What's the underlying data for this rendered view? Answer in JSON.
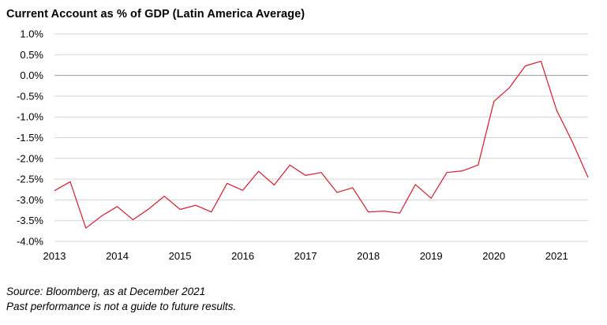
{
  "chart_data": {
    "type": "line",
    "title": "Current Account as % of GDP (Latin America Average)",
    "xlabel": "",
    "ylabel": "",
    "x_ticks": [
      "2013",
      "2014",
      "2015",
      "2016",
      "2017",
      "2018",
      "2019",
      "2020",
      "2021"
    ],
    "x_range": [
      2013.0,
      2021.5
    ],
    "y_ticks": [
      "1.0%",
      "0.5%",
      "0.0%",
      "-0.5%",
      "-1.0%",
      "-1.5%",
      "-2.0%",
      "-2.5%",
      "-3.0%",
      "-3.5%",
      "-4.0%"
    ],
    "ylim": [
      -4.0,
      1.0
    ],
    "grid": "horizontal",
    "legend": "none",
    "series": [
      {
        "color": "#e0182d",
        "x": [
          2013.0,
          2013.25,
          2013.5,
          2013.75,
          2014.0,
          2014.25,
          2014.5,
          2014.75,
          2015.0,
          2015.25,
          2015.5,
          2015.75,
          2016.0,
          2016.25,
          2016.5,
          2016.75,
          2017.0,
          2017.25,
          2017.5,
          2017.75,
          2018.0,
          2018.25,
          2018.5,
          2018.75,
          2019.0,
          2019.25,
          2019.5,
          2019.75,
          2020.0,
          2020.25,
          2020.5,
          2020.75,
          2021.0,
          2021.25,
          2021.5
        ],
        "values": [
          -2.78,
          -2.56,
          -3.68,
          -3.39,
          -3.16,
          -3.48,
          -3.22,
          -2.91,
          -3.23,
          -3.13,
          -3.29,
          -2.6,
          -2.77,
          -2.31,
          -2.64,
          -2.16,
          -2.41,
          -2.34,
          -2.82,
          -2.71,
          -3.29,
          -3.27,
          -3.32,
          -2.63,
          -2.96,
          -2.34,
          -2.3,
          -2.16,
          -0.63,
          -0.29,
          0.23,
          0.34,
          -0.84,
          -1.6,
          -2.46
        ]
      }
    ]
  },
  "footnotes": {
    "source": "Source: Bloomberg, as at December 2021",
    "disclaimer": "Past performance is not a guide to future results."
  }
}
